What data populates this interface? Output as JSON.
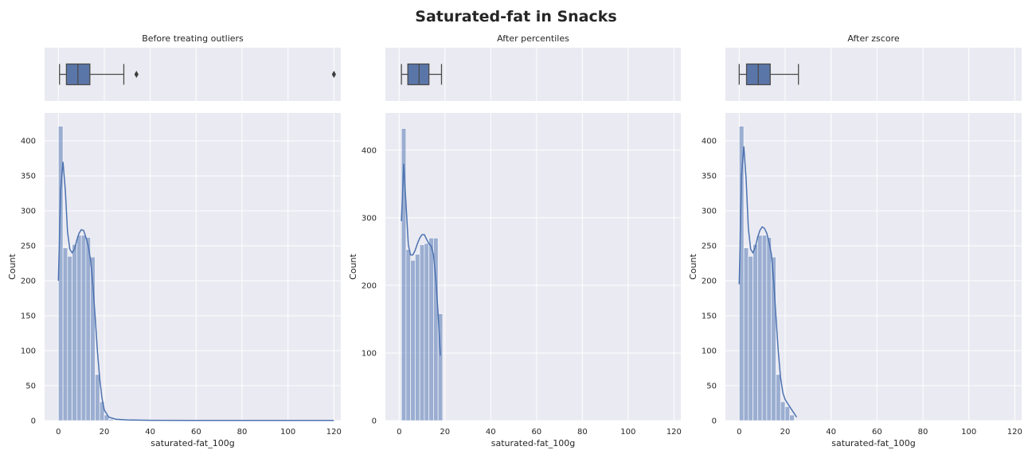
{
  "figure": {
    "title": "Saturated-fat in Snacks"
  },
  "colors": {
    "background": "#eaeaf2",
    "grid": "#ffffff",
    "bar": "#4c72b0",
    "kde": "#4c72b0",
    "box": "#5a76a9",
    "whisker": "#4a4a4a"
  },
  "chart_data": [
    {
      "type": "bar",
      "subtype": "histogram-with-kde-and-boxplot",
      "title": "Before treating outliers",
      "xlabel": "saturated-fat_100g",
      "ylabel": "Count",
      "xlim": [
        -6,
        123
      ],
      "ylim": [
        0,
        440
      ],
      "xticks": [
        0,
        20,
        40,
        60,
        80,
        100,
        120
      ],
      "yticks": [
        0,
        50,
        100,
        150,
        200,
        250,
        300,
        350,
        400
      ],
      "bin_width": 2,
      "bins": [
        {
          "x0": 0,
          "count": 421
        },
        {
          "x0": 2,
          "count": 247
        },
        {
          "x0": 4,
          "count": 235
        },
        {
          "x0": 6,
          "count": 252
        },
        {
          "x0": 8,
          "count": 265
        },
        {
          "x0": 10,
          "count": 265
        },
        {
          "x0": 12,
          "count": 262
        },
        {
          "x0": 14,
          "count": 234
        },
        {
          "x0": 16,
          "count": 66
        },
        {
          "x0": 18,
          "count": 27
        },
        {
          "x0": 20,
          "count": 8
        },
        {
          "x0": 22,
          "count": 2
        },
        {
          "x0": 24,
          "count": 1
        },
        {
          "x0": 26,
          "count": 1
        },
        {
          "x0": 32,
          "count": 1
        },
        {
          "x0": 118,
          "count": 1
        }
      ],
      "kde": [
        [
          0,
          200
        ],
        [
          1,
          330
        ],
        [
          2,
          370
        ],
        [
          3,
          330
        ],
        [
          4,
          270
        ],
        [
          5,
          245
        ],
        [
          6,
          240
        ],
        [
          7,
          245
        ],
        [
          8,
          258
        ],
        [
          9,
          268
        ],
        [
          10,
          273
        ],
        [
          11,
          272
        ],
        [
          12,
          262
        ],
        [
          13,
          250
        ],
        [
          14,
          230
        ],
        [
          15,
          195
        ],
        [
          16,
          150
        ],
        [
          17,
          100
        ],
        [
          18,
          60
        ],
        [
          19,
          32
        ],
        [
          20,
          15
        ],
        [
          22,
          5
        ],
        [
          25,
          2
        ],
        [
          30,
          1
        ],
        [
          40,
          0.5
        ],
        [
          60,
          0.3
        ],
        [
          80,
          0.2
        ],
        [
          100,
          0.2
        ],
        [
          120,
          0.3
        ]
      ],
      "boxplot": {
        "whisker_low": 0.5,
        "q1": 3.5,
        "median": 8.5,
        "q3": 13.7,
        "whisker_high": 28.5,
        "outliers": [
          34,
          120
        ]
      }
    },
    {
      "type": "bar",
      "subtype": "histogram-with-kde-and-boxplot",
      "title": "After percentiles",
      "xlabel": "saturated-fat_100g",
      "ylabel": "Count",
      "xlim": [
        -6,
        123
      ],
      "ylim": [
        0,
        455
      ],
      "xticks": [
        0,
        20,
        40,
        60,
        80,
        100,
        120
      ],
      "yticks": [
        0,
        100,
        200,
        300,
        400
      ],
      "bin_width": 2,
      "bins": [
        {
          "x0": 1,
          "count": 432
        },
        {
          "x0": 3,
          "count": 253
        },
        {
          "x0": 5,
          "count": 237
        },
        {
          "x0": 7,
          "count": 246
        },
        {
          "x0": 9,
          "count": 260
        },
        {
          "x0": 11,
          "count": 262
        },
        {
          "x0": 13,
          "count": 270
        },
        {
          "x0": 15,
          "count": 270
        },
        {
          "x0": 17,
          "count": 158
        }
      ],
      "kde": [
        [
          1,
          295
        ],
        [
          2,
          380
        ],
        [
          3,
          320
        ],
        [
          4,
          260
        ],
        [
          5,
          245
        ],
        [
          6,
          245
        ],
        [
          7,
          252
        ],
        [
          8,
          262
        ],
        [
          9,
          270
        ],
        [
          10,
          275
        ],
        [
          11,
          275
        ],
        [
          12,
          268
        ],
        [
          13,
          262
        ],
        [
          14,
          258
        ],
        [
          15,
          245
        ],
        [
          16,
          210
        ],
        [
          17,
          160
        ],
        [
          18,
          96
        ]
      ],
      "boxplot": {
        "whisker_low": 1,
        "q1": 3.8,
        "median": 8.7,
        "q3": 13,
        "whisker_high": 18.5,
        "outliers": []
      }
    },
    {
      "type": "bar",
      "subtype": "histogram-with-kde-and-boxplot",
      "title": "After zscore",
      "xlabel": "saturated-fat_100g",
      "ylabel": "Count",
      "xlim": [
        -6,
        123
      ],
      "ylim": [
        0,
        440
      ],
      "xticks": [
        0,
        20,
        40,
        60,
        80,
        100,
        120
      ],
      "yticks": [
        0,
        50,
        100,
        150,
        200,
        250,
        300,
        350,
        400
      ],
      "bin_width": 2,
      "bins": [
        {
          "x0": 0,
          "count": 421
        },
        {
          "x0": 2,
          "count": 247
        },
        {
          "x0": 4,
          "count": 235
        },
        {
          "x0": 6,
          "count": 252
        },
        {
          "x0": 8,
          "count": 265
        },
        {
          "x0": 10,
          "count": 265
        },
        {
          "x0": 12,
          "count": 262
        },
        {
          "x0": 14,
          "count": 234
        },
        {
          "x0": 16,
          "count": 66
        },
        {
          "x0": 18,
          "count": 27
        },
        {
          "x0": 20,
          "count": 20
        },
        {
          "x0": 22,
          "count": 8
        }
      ],
      "kde": [
        [
          0,
          195
        ],
        [
          1,
          350
        ],
        [
          2,
          392
        ],
        [
          3,
          345
        ],
        [
          4,
          275
        ],
        [
          5,
          245
        ],
        [
          6,
          240
        ],
        [
          7,
          248
        ],
        [
          8,
          262
        ],
        [
          9,
          272
        ],
        [
          10,
          277
        ],
        [
          11,
          275
        ],
        [
          12,
          268
        ],
        [
          13,
          255
        ],
        [
          14,
          238
        ],
        [
          15,
          200
        ],
        [
          16,
          150
        ],
        [
          17,
          100
        ],
        [
          18,
          62
        ],
        [
          19,
          40
        ],
        [
          20,
          30
        ],
        [
          21,
          25
        ],
        [
          22,
          20
        ],
        [
          23,
          15
        ],
        [
          24,
          10
        ],
        [
          25,
          5
        ]
      ],
      "boxplot": {
        "whisker_low": 0,
        "q1": 3.2,
        "median": 8.3,
        "q3": 13.5,
        "whisker_high": 25.8,
        "outliers": []
      }
    }
  ]
}
